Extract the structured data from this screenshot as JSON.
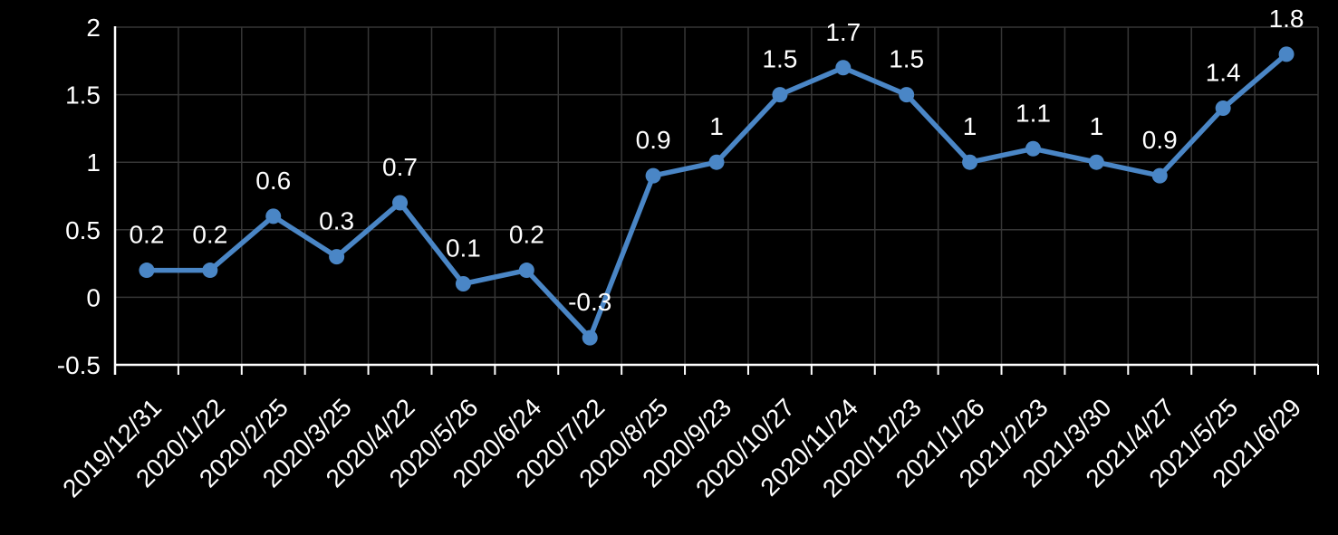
{
  "chart_data": {
    "type": "line",
    "title": "",
    "xlabel": "",
    "ylabel": "",
    "categories": [
      "2019/12/31",
      "2020/1/22",
      "2020/2/25",
      "2020/3/25",
      "2020/4/22",
      "2020/5/26",
      "2020/6/24",
      "2020/7/22",
      "2020/8/25",
      "2020/9/23",
      "2020/10/27",
      "2020/11/24",
      "2020/12/23",
      "2021/1/26",
      "2021/2/23",
      "2021/3/30",
      "2021/4/27",
      "2021/5/25",
      "2021/6/29"
    ],
    "values": [
      0.2,
      0.2,
      0.6,
      0.3,
      0.7,
      0.1,
      0.2,
      -0.3,
      0.9,
      1,
      1.5,
      1.7,
      1.5,
      1,
      1.1,
      1,
      0.9,
      1.4,
      1.8
    ],
    "data_labels": [
      "0.2",
      "0.2",
      "0.6",
      "0.3",
      "0.7",
      "0.1",
      "0.2",
      "-0.3",
      "0.9",
      "1",
      "1.5",
      "1.7",
      "1.5",
      "1",
      "1.1",
      "1",
      "0.9",
      "1.4",
      "1.8"
    ],
    "y_ticks": [
      2,
      1.5,
      1,
      0.5,
      0,
      -0.5
    ],
    "y_tick_labels": [
      "2",
      "1.5",
      "1",
      "0.5",
      "0",
      "-0.5"
    ],
    "ylim": [
      -0.5,
      2
    ],
    "grid": true,
    "legend": "none",
    "colors": {
      "background": "#000000",
      "line": "#4A86C6",
      "marker": "#4A86C6",
      "gridline": "#363636",
      "axis_line": "#FFFFFF",
      "label_text": "#FFFFFF"
    }
  }
}
